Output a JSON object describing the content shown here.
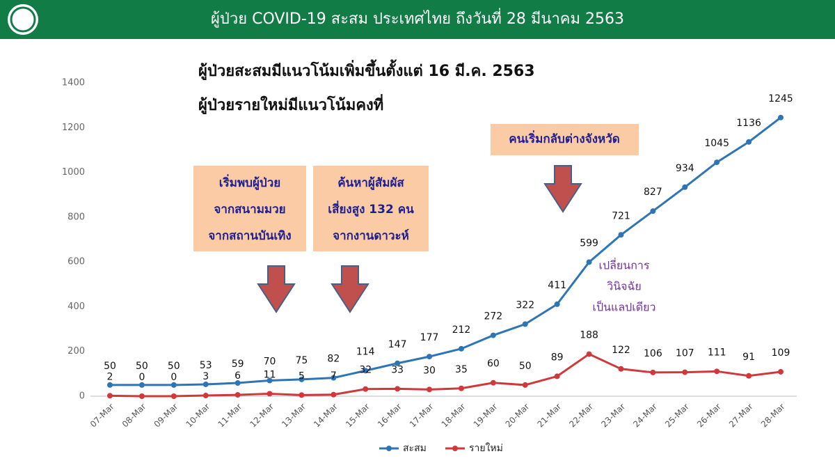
{
  "chart_data": {
    "type": "line",
    "title": "ผู้ป่วย COVID-19 สะสม  ประเทศไทย ถึงวันที่ 28 มีนาคม 2563",
    "subtitle": [
      "ผู้ป่วยสะสมมีแนวโน้มเพิ่มขึ้นตั้งแต่ 16 มี.ค. 2563",
      "ผู้ป่วยรายใหม่มีแนวโน้มคงที่"
    ],
    "categories": [
      "07-Mar",
      "08-Mar",
      "09-Mar",
      "10-Mar",
      "11-Mar",
      "12-Mar",
      "13-Mar",
      "14-Mar",
      "15-Mar",
      "16-Mar",
      "17-Mar",
      "18-Mar",
      "19-Mar",
      "20-Mar",
      "21-Mar",
      "22-Mar",
      "23-Mar",
      "24-Mar",
      "25-Mar",
      "26-Mar",
      "27-Mar",
      "28-Mar"
    ],
    "series": [
      {
        "name": "สะสม",
        "color": "#2e75b6",
        "values": [
          50,
          50,
          50,
          53,
          59,
          70,
          75,
          82,
          114,
          147,
          177,
          212,
          272,
          322,
          411,
          599,
          721,
          827,
          934,
          1045,
          1136,
          1245
        ]
      },
      {
        "name": "รายใหม่",
        "color": "#d0393b",
        "values": [
          2,
          0,
          0,
          3,
          6,
          11,
          5,
          7,
          32,
          33,
          30,
          35,
          60,
          50,
          89,
          188,
          122,
          106,
          107,
          111,
          91,
          109
        ]
      }
    ],
    "ylim": [
      0,
      1400
    ],
    "yticks": [
      0,
      200,
      400,
      600,
      800,
      1000,
      1200,
      1400
    ],
    "legend": "bottom",
    "annotations": [
      {
        "lines": [
          "เริ่มพบผู้ป่วย",
          "จากสนามมวย",
          "จากสถานบันเทิง"
        ]
      },
      {
        "lines": [
          "ค้นหาผู้สัมผัส",
          "เสี่ยงสูง 132 คน",
          "จากงานดาวะห์"
        ]
      },
      {
        "lines": [
          "คนเริ่มกลับต่างจังหวัด"
        ]
      },
      {
        "lines": [
          "เปลี่ยนการ",
          "วินิจฉัย",
          "เป็นแลปเดียว"
        ]
      }
    ]
  }
}
